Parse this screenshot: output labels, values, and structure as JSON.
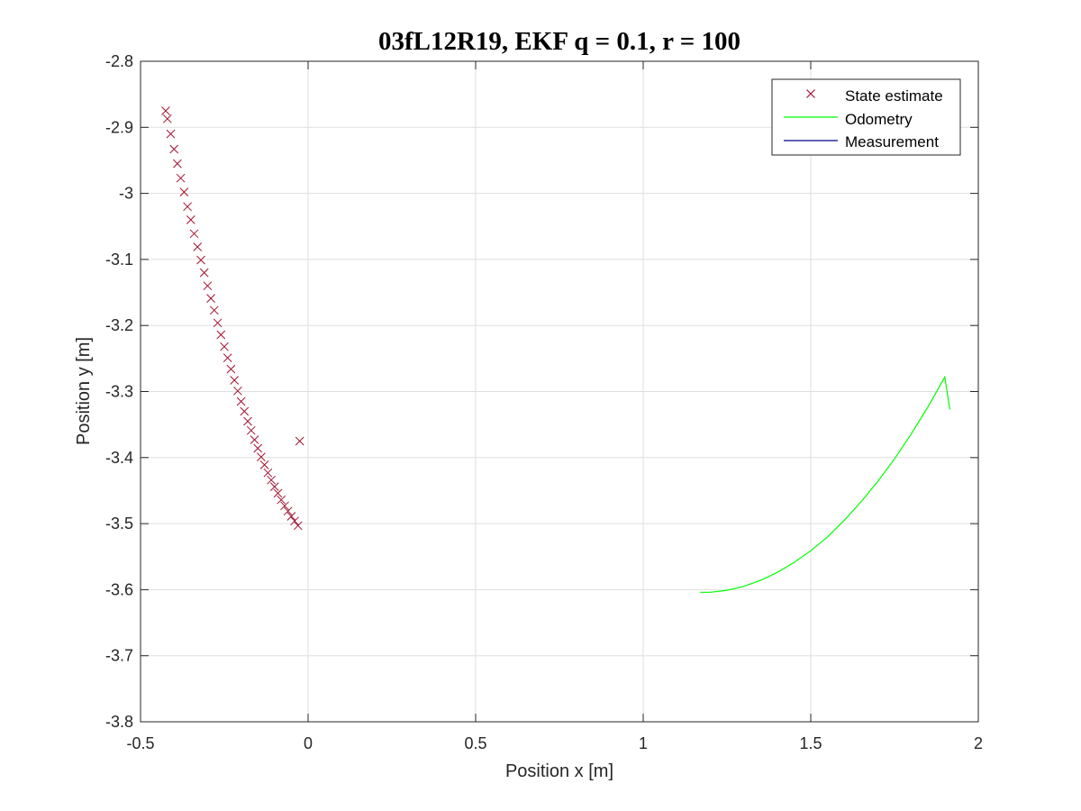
{
  "chart_data": {
    "type": "scatter",
    "title": "03fL12R19, EKF q = 0.1, r = 100",
    "xlabel": "Position x [m]",
    "ylabel": "Position y [m]",
    "xlim": [
      -0.5,
      2
    ],
    "ylim": [
      -3.8,
      -2.8
    ],
    "xticks": [
      -0.5,
      0,
      0.5,
      1,
      1.5,
      2
    ],
    "yticks": [
      -3.8,
      -3.7,
      -3.6,
      -3.5,
      -3.4,
      -3.3,
      -3.2,
      -3.1,
      -3.0,
      -2.9,
      -2.8
    ],
    "xtick_labels": [
      "-0.5",
      "0",
      "0.5",
      "1",
      "1.5",
      "2"
    ],
    "ytick_labels": [
      "-3.8",
      "-3.7",
      "-3.6",
      "-3.5",
      "-3.4",
      "-3.3",
      "-3.2",
      "-3.1",
      "-3",
      "-2.9",
      "-2.8"
    ],
    "grid": true,
    "legend_position": "top-right",
    "series": [
      {
        "name": "State estimate",
        "style": "marker-x",
        "color": "#a2142f",
        "x": [
          -0.425,
          -0.42,
          -0.41,
          -0.4,
          -0.39,
          -0.38,
          -0.37,
          -0.36,
          -0.35,
          -0.34,
          -0.33,
          -0.32,
          -0.31,
          -0.3,
          -0.29,
          -0.28,
          -0.27,
          -0.26,
          -0.25,
          -0.24,
          -0.23,
          -0.22,
          -0.21,
          -0.2,
          -0.19,
          -0.18,
          -0.17,
          -0.16,
          -0.15,
          -0.14,
          -0.13,
          -0.12,
          -0.11,
          -0.1,
          -0.09,
          -0.08,
          -0.07,
          -0.06,
          -0.05,
          -0.04,
          -0.03,
          -0.025
        ],
        "y": [
          -2.875,
          -2.887,
          -2.91,
          -2.933,
          -2.955,
          -2.977,
          -2.998,
          -3.02,
          -3.04,
          -3.061,
          -3.081,
          -3.101,
          -3.12,
          -3.14,
          -3.159,
          -3.177,
          -3.196,
          -3.214,
          -3.232,
          -3.249,
          -3.266,
          -3.283,
          -3.299,
          -3.315,
          -3.33,
          -3.345,
          -3.359,
          -3.373,
          -3.386,
          -3.399,
          -3.411,
          -3.423,
          -3.434,
          -3.444,
          -3.454,
          -3.464,
          -3.473,
          -3.481,
          -3.489,
          -3.496,
          -3.503,
          -3.375
        ]
      },
      {
        "name": "Odometry",
        "style": "line",
        "color": "#00ff00",
        "x": [
          1.17,
          1.2,
          1.25,
          1.3,
          1.35,
          1.4,
          1.45,
          1.5,
          1.55,
          1.6,
          1.65,
          1.7,
          1.75,
          1.8,
          1.85,
          1.9,
          1.915
        ],
        "y": [
          -3.604,
          -3.604,
          -3.601,
          -3.595,
          -3.586,
          -3.574,
          -3.559,
          -3.541,
          -3.52,
          -3.495,
          -3.467,
          -3.436,
          -3.402,
          -3.364,
          -3.323,
          -3.278,
          -3.327
        ]
      },
      {
        "name": "Measurement",
        "style": "line",
        "color": "#00008b",
        "x": [],
        "y": []
      }
    ]
  },
  "colors": {
    "axis": "#262626",
    "grid": "#dfdfdf",
    "background": "#ffffff"
  }
}
